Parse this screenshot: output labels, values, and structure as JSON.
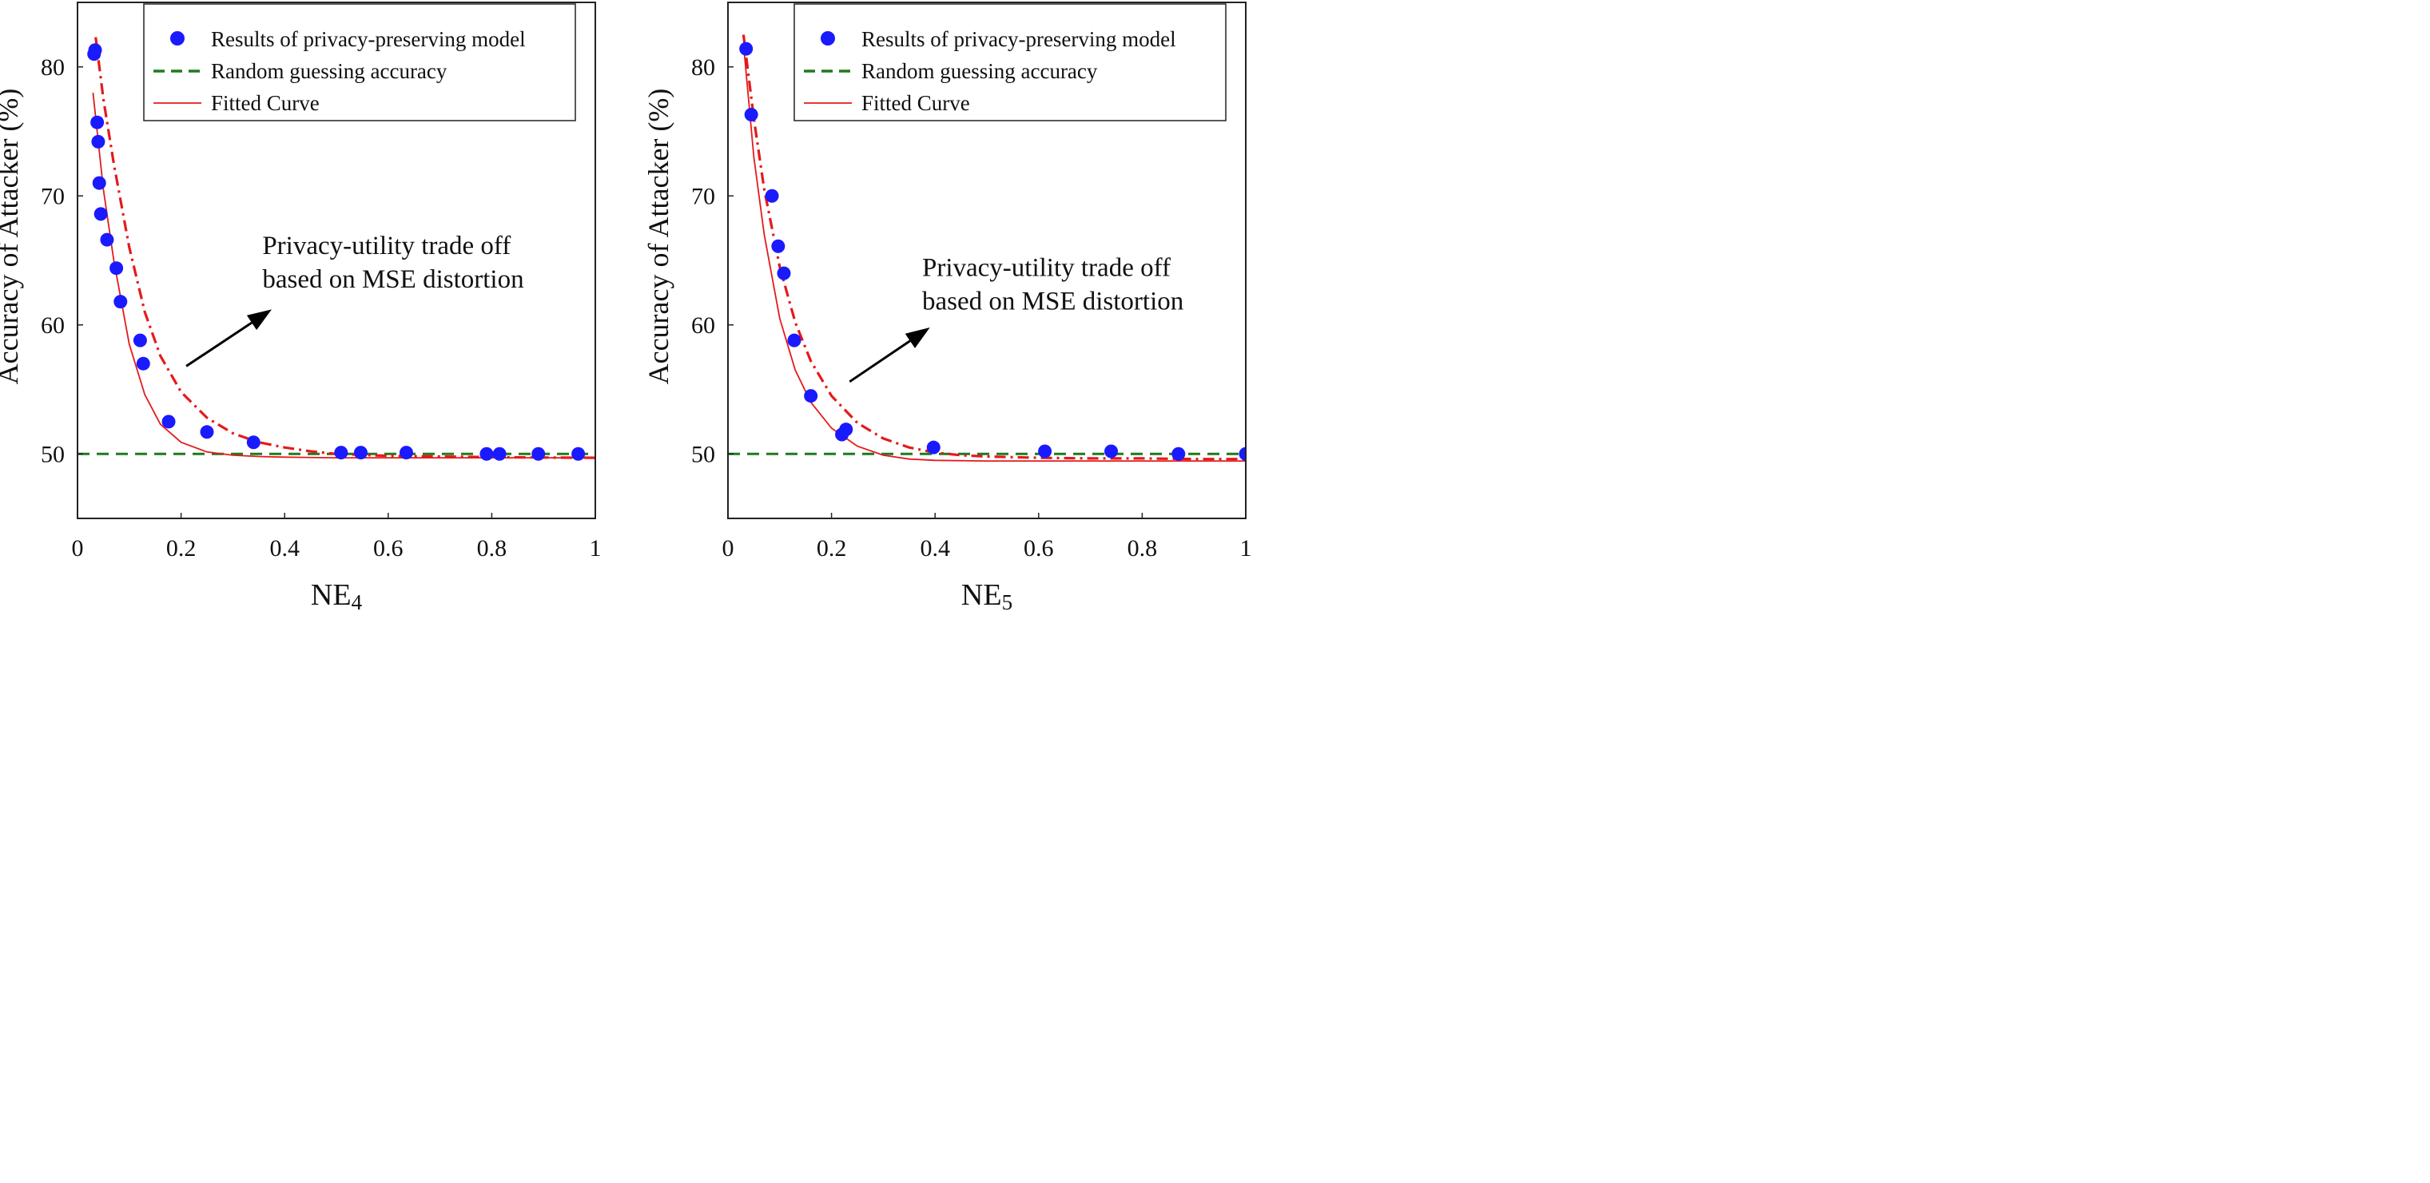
{
  "chart_data": [
    {
      "type": "scatter",
      "xlabel": "NE",
      "xlabel_subscript": "4",
      "ylabel": "Accuracy of Attacker (%)",
      "xlim": [
        0,
        1
      ],
      "ylim": [
        45,
        85
      ],
      "xticks": [
        0,
        0.2,
        0.4,
        0.6,
        0.8,
        1
      ],
      "xtick_labels": [
        "0",
        "0.2",
        "0.4",
        "0.6",
        "0.8",
        "1"
      ],
      "yticks": [
        50,
        60,
        70,
        80
      ],
      "ytick_labels": [
        "50",
        "60",
        "70",
        "80"
      ],
      "legend_position": "top-right",
      "legend": [
        {
          "label": "Results of privacy-preserving model",
          "marker": "dot"
        },
        {
          "label": "Random guessing accuracy",
          "marker": "dashed"
        },
        {
          "label": "Fitted Curve",
          "marker": "line"
        }
      ],
      "annotation": {
        "lines": [
          "Privacy-utility trade off",
          "based on MSE distortion"
        ],
        "arrow_from": [
          0.21,
          56.8
        ],
        "arrow_to": [
          0.375,
          61.2
        ],
        "text_at": [
          0.357,
          65.5
        ]
      },
      "series": [
        {
          "name": "Results of privacy-preserving model",
          "kind": "points",
          "x": [
            0.032,
            0.034,
            0.038,
            0.04,
            0.042,
            0.045,
            0.057,
            0.075,
            0.083,
            0.121,
            0.127,
            0.176,
            0.25,
            0.34,
            0.509,
            0.547,
            0.635,
            0.79,
            0.815,
            0.89,
            0.967
          ],
          "y": [
            81.0,
            81.3,
            75.7,
            74.2,
            71.0,
            68.6,
            66.6,
            64.4,
            61.8,
            58.8,
            57.0,
            52.5,
            51.7,
            50.9,
            50.1,
            50.1,
            50.1,
            50.0,
            50.0,
            50.0,
            50.0
          ]
        },
        {
          "name": "Random guessing accuracy",
          "kind": "hline",
          "y": 50
        },
        {
          "name": "Fitted Curve",
          "kind": "curve",
          "style": "solid",
          "x": [
            0.03,
            0.05,
            0.07,
            0.1,
            0.13,
            0.16,
            0.2,
            0.25,
            0.3,
            0.35,
            0.4,
            0.5,
            0.6,
            0.7,
            0.8,
            0.9,
            0.999
          ],
          "y": [
            78.0,
            70.5,
            65.0,
            58.5,
            54.6,
            52.3,
            50.9,
            50.15,
            49.9,
            49.8,
            49.75,
            49.7,
            49.7,
            49.7,
            49.7,
            49.7,
            49.7
          ]
        },
        {
          "name": "",
          "kind": "curve",
          "style": "dashdot",
          "x": [
            0.035,
            0.05,
            0.07,
            0.1,
            0.13,
            0.16,
            0.2,
            0.25,
            0.3,
            0.35,
            0.4,
            0.45,
            0.5,
            0.6,
            0.7,
            0.8,
            0.9,
            0.999
          ],
          "y": [
            82.3,
            77.5,
            72.5,
            66.0,
            61.0,
            57.6,
            54.8,
            52.8,
            51.6,
            50.9,
            50.5,
            50.2,
            50.0,
            49.85,
            49.8,
            49.75,
            49.72,
            49.7
          ]
        }
      ]
    },
    {
      "type": "scatter",
      "xlabel": "NE",
      "xlabel_subscript": "5",
      "ylabel": "Accuracy of Attacker (%)",
      "xlim": [
        0,
        1
      ],
      "ylim": [
        45,
        85
      ],
      "xticks": [
        0,
        0.2,
        0.4,
        0.6,
        0.8,
        1
      ],
      "xtick_labels": [
        "0",
        "0.2",
        "0.4",
        "0.6",
        "0.8",
        "1"
      ],
      "yticks": [
        50,
        60,
        70,
        80
      ],
      "ytick_labels": [
        "50",
        "60",
        "70",
        "80"
      ],
      "legend_position": "top-right",
      "legend": [
        {
          "label": "Results of privacy-preserving model",
          "marker": "dot"
        },
        {
          "label": "Random guessing accuracy",
          "marker": "dashed"
        },
        {
          "label": "Fitted Curve",
          "marker": "line"
        }
      ],
      "annotation": {
        "lines": [
          "Privacy-utility trade off",
          "based on MSE distortion"
        ],
        "arrow_from": [
          0.235,
          55.6
        ],
        "arrow_to": [
          0.39,
          59.8
        ],
        "text_at": [
          0.375,
          63.8
        ]
      },
      "series": [
        {
          "name": "Results of privacy-preserving model",
          "kind": "points",
          "x": [
            0.035,
            0.045,
            0.085,
            0.097,
            0.108,
            0.128,
            0.16,
            0.22,
            0.228,
            0.397,
            0.612,
            0.74,
            0.87,
            1.0
          ],
          "y": [
            81.4,
            76.3,
            70.0,
            66.1,
            64.0,
            58.8,
            54.5,
            51.5,
            51.9,
            50.5,
            50.2,
            50.2,
            50.0,
            50.0
          ]
        },
        {
          "name": "Random guessing accuracy",
          "kind": "hline",
          "y": 50
        },
        {
          "name": "Fitted Curve",
          "kind": "curve",
          "style": "solid",
          "x": [
            0.03,
            0.05,
            0.07,
            0.1,
            0.13,
            0.16,
            0.2,
            0.25,
            0.3,
            0.35,
            0.4,
            0.5,
            0.6,
            0.7,
            0.8,
            0.9,
            0.999
          ],
          "y": [
            81.8,
            73.0,
            67.0,
            60.5,
            56.5,
            54.0,
            52.0,
            50.6,
            49.9,
            49.6,
            49.5,
            49.45,
            49.45,
            49.45,
            49.45,
            49.45,
            49.45
          ]
        },
        {
          "name": "",
          "kind": "curve",
          "style": "dashdot",
          "x": [
            0.03,
            0.05,
            0.07,
            0.1,
            0.13,
            0.16,
            0.2,
            0.25,
            0.3,
            0.35,
            0.4,
            0.45,
            0.5,
            0.6,
            0.7,
            0.8,
            0.9,
            0.999
          ],
          "y": [
            82.5,
            76.0,
            70.5,
            64.5,
            60.2,
            57.2,
            54.5,
            52.4,
            51.2,
            50.5,
            50.1,
            49.9,
            49.8,
            49.7,
            49.65,
            49.65,
            49.6,
            49.6
          ]
        }
      ]
    }
  ],
  "colors": {
    "points": "#1a1aff",
    "fitted_curve": "#e41a1c",
    "random_guess": "#1f7a1f",
    "axes": "#222222",
    "annotation_arrow": "#000000"
  }
}
